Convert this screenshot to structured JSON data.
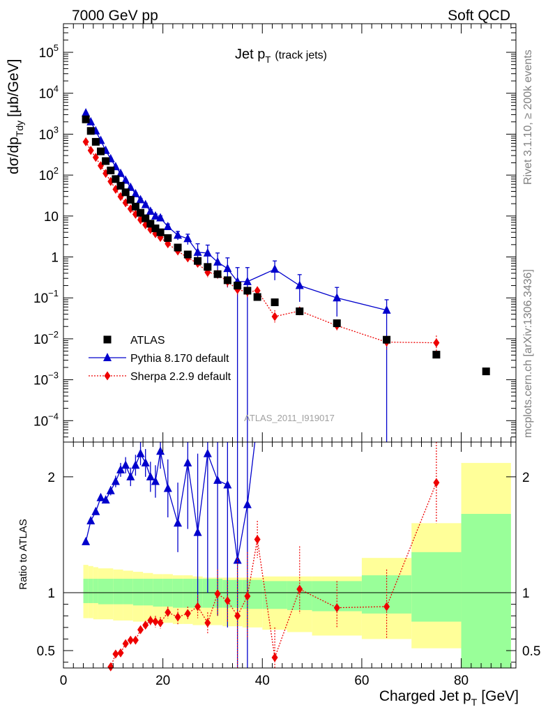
{
  "header": {
    "left": "7000 GeV pp",
    "right": "Soft QCD"
  },
  "side": {
    "top": "Rivet 3.1.10, ≥ 200k events",
    "bottom": "mcplots.cern.ch [arXiv:1306.3436]"
  },
  "plot": {
    "title_main": "Jet p",
    "title_sub": "T",
    "title_extra": "(track jets)",
    "ylabel_main": "dσ/dp",
    "ylabel_sub": "Tdy",
    "ylabel_unit": "[μb/GeV]",
    "watermark": "ATLAS_2011_I919017",
    "ratio_ylabel": "Ratio to ATLAS",
    "xlabel_main": "Charged Jet p",
    "xlabel_sub": "T",
    "xlabel_unit": "[GeV]"
  },
  "legend": [
    {
      "label": "ATLAS",
      "color": "#000000",
      "marker": "square"
    },
    {
      "label": "Pythia 8.170 default",
      "color": "#0000cc",
      "marker": "triangle"
    },
    {
      "label": "Sherpa 2.2.9 default",
      "color": "#ee0000",
      "marker": "diamond"
    }
  ],
  "chart_data": {
    "type": "scatter",
    "xlim": [
      0,
      91
    ],
    "ylim": [
      3e-05,
      500000
    ],
    "yscale": "log",
    "x_ticks": [
      0,
      20,
      40,
      60,
      80
    ],
    "y_tick_labels": [
      {
        "v": 100000,
        "base": "10",
        "exp": "5"
      },
      {
        "v": 10000,
        "base": "10",
        "exp": "4"
      },
      {
        "v": 1000,
        "base": "10",
        "exp": "3"
      },
      {
        "v": 100,
        "base": "10",
        "exp": "2"
      },
      {
        "v": 10,
        "base": "10",
        "exp": ""
      },
      {
        "v": 1,
        "base": "1",
        "exp": ""
      },
      {
        "v": 0.1,
        "base": "10",
        "exp": "−1"
      },
      {
        "v": 0.01,
        "base": "10",
        "exp": "−2"
      },
      {
        "v": 0.001,
        "base": "10",
        "exp": "−3"
      },
      {
        "v": 0.0001,
        "base": "10",
        "exp": "−4"
      }
    ],
    "ratio_ylim": [
      0.35,
      2.3
    ],
    "ratio_y_ticks": [
      0.5,
      1,
      2
    ],
    "series": [
      {
        "name": "ATLAS",
        "x": [
          4.5,
          5.5,
          6.5,
          7.5,
          8.5,
          9.5,
          10.5,
          11.5,
          12.5,
          13.5,
          14.5,
          15.5,
          16.5,
          17.5,
          18.5,
          19.5,
          21,
          23,
          25,
          27,
          29,
          31,
          33,
          35,
          37,
          39,
          42.5,
          47.5,
          55,
          65,
          75,
          85
        ],
        "y": [
          2300,
          1200,
          650,
          380,
          220,
          130,
          80,
          55,
          38,
          25,
          17,
          12,
          8.8,
          6.5,
          5,
          4,
          2.9,
          1.7,
          1.15,
          0.8,
          0.57,
          0.38,
          0.27,
          0.2,
          0.15,
          0.105,
          0.078,
          0.047,
          0.024,
          0.0095,
          0.0041,
          0.0016
        ]
      },
      {
        "name": "Pythia 8.170 default",
        "x": [
          4.5,
          5.5,
          6.5,
          7.5,
          8.5,
          9.5,
          10.5,
          11.5,
          12.5,
          13.5,
          14.5,
          15.5,
          16.5,
          17.5,
          18.5,
          19.5,
          21,
          23,
          25,
          27,
          29,
          31,
          33,
          35,
          37,
          42.5,
          47.5,
          55,
          65
        ],
        "y": [
          3300,
          2000,
          1200,
          700,
          400,
          250,
          160,
          110,
          75,
          50,
          35,
          25,
          19,
          13,
          10,
          9,
          5.5,
          3.4,
          2.8,
          1.3,
          1.25,
          0.75,
          0.52,
          0.25,
          0.25,
          0.5,
          0.2,
          0.1,
          0.05
        ],
        "err_hi": [
          3400,
          2050,
          1240,
          725,
          415,
          260,
          167,
          116,
          79,
          53,
          37,
          27,
          20.6,
          14.3,
          11.2,
          10.1,
          6.4,
          4.2,
          3.6,
          2.1,
          1.95,
          1.25,
          0.95,
          0.55,
          0.55,
          0.8,
          0.37,
          0.18,
          0.09
        ],
        "err_lo": [
          3200,
          1950,
          1160,
          675,
          385,
          240,
          153,
          104,
          71,
          47,
          33,
          23,
          17.4,
          11.7,
          8.8,
          7.9,
          4.6,
          2.6,
          2.0,
          0.6,
          0.55,
          0.3,
          0.18,
          3e-05,
          3e-05,
          0.27,
          0.08,
          0.035,
          3e-05
        ]
      },
      {
        "name": "Sherpa 2.2.9 default",
        "x": [
          4.5,
          5.5,
          6.5,
          7.5,
          8.5,
          9.5,
          10.5,
          11.5,
          12.5,
          13.5,
          14.5,
          15.5,
          16.5,
          17.5,
          18.5,
          19.5,
          21,
          23,
          25,
          27,
          29,
          31,
          33,
          35,
          37,
          39,
          42.5,
          47.5,
          55,
          65,
          75
        ],
        "y": [
          650,
          400,
          270,
          170,
          110,
          70,
          45,
          30,
          21,
          15,
          11,
          8.1,
          6.1,
          4.7,
          3.7,
          3,
          2.1,
          1.4,
          0.95,
          0.7,
          0.42,
          0.38,
          0.25,
          0.16,
          0.14,
          0.15,
          0.035,
          0.048,
          0.021,
          0.0083,
          0.008
        ],
        "err_hi": [
          665,
          410,
          277,
          175,
          114,
          73,
          47,
          31.5,
          22.2,
          16,
          11.8,
          8.8,
          6.7,
          5.3,
          4.2,
          3.4,
          2.4,
          1.7,
          1.15,
          0.85,
          0.52,
          0.47,
          0.32,
          0.21,
          0.18,
          0.19,
          0.05,
          0.06,
          0.028,
          0.011,
          0.012
        ],
        "err_lo": [
          635,
          390,
          263,
          165,
          106,
          67,
          43,
          28.5,
          19.8,
          14,
          10.2,
          7.4,
          5.5,
          4.1,
          3.2,
          2.6,
          1.8,
          1.1,
          0.75,
          0.55,
          0.32,
          0.29,
          0.18,
          0.11,
          0.1,
          0.11,
          0.025,
          0.038,
          0.015,
          0.0055,
          0.005
        ]
      }
    ],
    "ratio_series": [
      {
        "name": "Pythia 8.170 default",
        "x": [
          4.5,
          5.5,
          6.5,
          7.5,
          8.5,
          9.5,
          10.5,
          11.5,
          12.5,
          13.5,
          14.5,
          15.5,
          16.5,
          17.5,
          18.5,
          19.5,
          21,
          23,
          25,
          27,
          29,
          31,
          33,
          35,
          37,
          38.5
        ],
        "y": [
          1.44,
          1.62,
          1.7,
          1.82,
          1.8,
          1.88,
          1.96,
          2.06,
          2.1,
          2.0,
          2.1,
          2.2,
          2.12,
          2.0,
          1.96,
          2.22,
          1.9,
          1.6,
          2.12,
          1.52,
          2.2,
          1.97,
          1.93,
          1.28,
          1.76,
          2.3
        ],
        "err_hi": [
          1.46,
          1.64,
          1.73,
          1.85,
          1.83,
          1.92,
          2.01,
          2.12,
          2.17,
          2.08,
          2.19,
          2.3,
          2.24,
          2.13,
          2.1,
          2.37,
          2.15,
          1.95,
          2.45,
          2.2,
          2.3,
          2.3,
          2.3,
          2.3,
          2.3,
          2.3
        ],
        "err_lo": [
          1.42,
          1.6,
          1.67,
          1.79,
          1.77,
          1.84,
          1.91,
          2.0,
          2.03,
          1.92,
          2.01,
          2.1,
          2.0,
          1.87,
          1.82,
          2.07,
          1.65,
          1.35,
          1.55,
          0.9,
          1.0,
          0.8,
          0.7,
          0.35,
          0.35,
          2.3
        ]
      },
      {
        "name": "Sherpa 2.2.9 default",
        "x": [
          9.5,
          10.5,
          11.5,
          12.5,
          13.5,
          14.5,
          15.5,
          16.5,
          17.5,
          18.5,
          19.5,
          21,
          23,
          25,
          27,
          29,
          31,
          33,
          35,
          37,
          39,
          42.5,
          47.5,
          55,
          65,
          75
        ],
        "y": [
          0.36,
          0.47,
          0.48,
          0.56,
          0.59,
          0.59,
          0.68,
          0.72,
          0.76,
          0.75,
          0.74,
          0.83,
          0.79,
          0.82,
          0.88,
          0.74,
          0.99,
          0.93,
          0.8,
          0.97,
          1.46,
          0.44,
          1.03,
          0.87,
          0.88,
          1.95
        ],
        "err_hi": [
          0.37,
          0.48,
          0.49,
          0.58,
          0.61,
          0.61,
          0.71,
          0.75,
          0.8,
          0.8,
          0.79,
          0.88,
          0.86,
          0.88,
          0.98,
          0.83,
          1.2,
          1.1,
          1.3,
          1.35,
          1.62,
          0.7,
          1.4,
          1.1,
          1.2,
          2.3
        ],
        "err_lo": [
          0.35,
          0.46,
          0.47,
          0.54,
          0.57,
          0.57,
          0.65,
          0.69,
          0.72,
          0.7,
          0.69,
          0.78,
          0.72,
          0.76,
          0.78,
          0.65,
          0.8,
          0.75,
          0.35,
          0.6,
          1.3,
          0.35,
          0.82,
          0.7,
          0.6,
          1.6
        ]
      }
    ],
    "ratio_bands": [
      {
        "x0": 4,
        "x1": 5,
        "yellow": [
          0.78,
          1.24
        ],
        "green": [
          0.91,
          1.12
        ]
      },
      {
        "x0": 5,
        "x1": 6,
        "yellow": [
          0.78,
          1.23
        ],
        "green": [
          0.91,
          1.12
        ]
      },
      {
        "x0": 6,
        "x1": 7,
        "yellow": [
          0.77,
          1.22
        ],
        "green": [
          0.91,
          1.12
        ]
      },
      {
        "x0": 7,
        "x1": 10,
        "yellow": [
          0.77,
          1.21
        ],
        "green": [
          0.9,
          1.12
        ]
      },
      {
        "x0": 10,
        "x1": 12,
        "yellow": [
          0.76,
          1.2
        ],
        "green": [
          0.9,
          1.12
        ]
      },
      {
        "x0": 12,
        "x1": 14,
        "yellow": [
          0.76,
          1.19
        ],
        "green": [
          0.9,
          1.12
        ]
      },
      {
        "x0": 14,
        "x1": 16,
        "yellow": [
          0.75,
          1.18
        ],
        "green": [
          0.89,
          1.12
        ]
      },
      {
        "x0": 16,
        "x1": 18,
        "yellow": [
          0.75,
          1.17
        ],
        "green": [
          0.89,
          1.12
        ]
      },
      {
        "x0": 18,
        "x1": 20,
        "yellow": [
          0.74,
          1.16
        ],
        "green": [
          0.88,
          1.12
        ]
      },
      {
        "x0": 20,
        "x1": 22,
        "yellow": [
          0.74,
          1.16
        ],
        "green": [
          0.88,
          1.12
        ]
      },
      {
        "x0": 22,
        "x1": 24,
        "yellow": [
          0.73,
          1.15
        ],
        "green": [
          0.87,
          1.12
        ]
      },
      {
        "x0": 24,
        "x1": 26,
        "yellow": [
          0.73,
          1.15
        ],
        "green": [
          0.87,
          1.12
        ]
      },
      {
        "x0": 26,
        "x1": 28,
        "yellow": [
          0.72,
          1.14
        ],
        "green": [
          0.87,
          1.12
        ]
      },
      {
        "x0": 28,
        "x1": 32,
        "yellow": [
          0.72,
          1.13
        ],
        "green": [
          0.87,
          1.12
        ]
      },
      {
        "x0": 32,
        "x1": 36,
        "yellow": [
          0.71,
          1.13
        ],
        "green": [
          0.87,
          1.11
        ]
      },
      {
        "x0": 36,
        "x1": 40,
        "yellow": [
          0.7,
          1.13
        ],
        "green": [
          0.86,
          1.11
        ]
      },
      {
        "x0": 40,
        "x1": 45,
        "yellow": [
          0.68,
          1.14
        ],
        "green": [
          0.86,
          1.1
        ]
      },
      {
        "x0": 45,
        "x1": 50,
        "yellow": [
          0.66,
          1.14
        ],
        "green": [
          0.85,
          1.1
        ]
      },
      {
        "x0": 50,
        "x1": 60,
        "yellow": [
          0.63,
          1.14
        ],
        "green": [
          0.84,
          1.1
        ]
      },
      {
        "x0": 60,
        "x1": 70,
        "yellow": [
          0.6,
          1.3
        ],
        "green": [
          0.82,
          1.15
        ]
      },
      {
        "x0": 70,
        "x1": 80,
        "yellow": [
          0.52,
          1.6
        ],
        "green": [
          0.75,
          1.35
        ]
      },
      {
        "x0": 80,
        "x1": 90,
        "yellow": [
          0.35,
          2.12
        ],
        "green": [
          0.35,
          1.68
        ]
      }
    ]
  }
}
